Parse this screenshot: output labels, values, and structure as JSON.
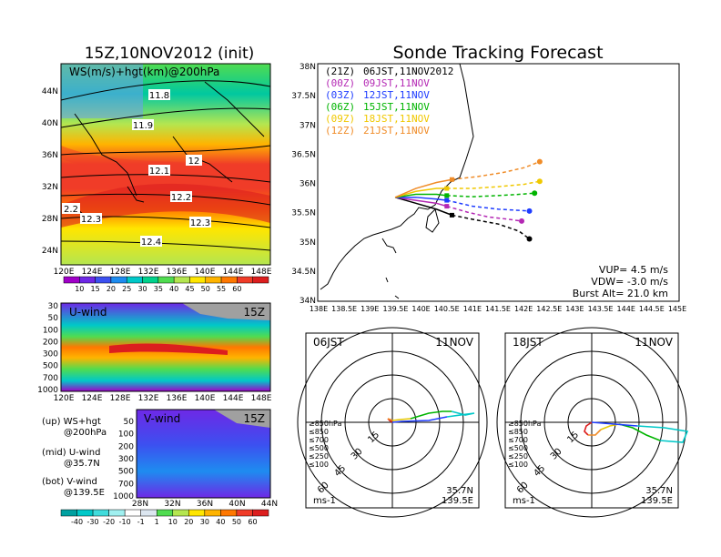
{
  "left": {
    "init_title": "15Z,10NOV2012 (init)",
    "top_panel": {
      "label": "WS(m/s)+hgt(km)@200hPa",
      "lat_ticks": [
        "44N",
        "40N",
        "36N",
        "32N",
        "28N",
        "24N"
      ],
      "lon_ticks": [
        "120E",
        "124E",
        "128E",
        "132E",
        "136E",
        "140E",
        "144E",
        "148E"
      ],
      "height_labels": [
        "11.8",
        "11.9",
        "12",
        "12.1",
        "12.2",
        "12.3",
        "12.3",
        "12.4",
        "2.2"
      ],
      "colorbar_ticks": [
        "10",
        "15",
        "20",
        "25",
        "30",
        "35",
        "40",
        "45",
        "50",
        "55",
        "60"
      ],
      "colorbar_colors": [
        "#a000c8",
        "#6e28e6",
        "#3c50f0",
        "#1e8cf0",
        "#00c8c8",
        "#00d28c",
        "#50dc50",
        "#b4e650",
        "#ffe600",
        "#ffb400",
        "#ff7800",
        "#f03c28",
        "#dc1e1e"
      ]
    },
    "mid_panel": {
      "label": "U-wind",
      "time": "15Z",
      "p_ticks": [
        "30",
        "50",
        "100",
        "200",
        "300",
        "500",
        "700",
        "1000"
      ],
      "lon_ticks": [
        "120E",
        "124E",
        "128E",
        "132E",
        "136E",
        "140E",
        "144E",
        "148E"
      ]
    },
    "bot_panel": {
      "label": "V-wind",
      "time": "15Z",
      "p_ticks": [
        "50",
        "100",
        "200",
        "300",
        "500",
        "700",
        "1000"
      ],
      "lat_ticks": [
        "28N",
        "32N",
        "36N",
        "40N",
        "44N"
      ]
    },
    "legend": {
      "up_line1": "(up) WS+hgt",
      "up_line2": "@200hPa",
      "mid_line1": "(mid) U-wind",
      "mid_line2": "@35.7N",
      "bot_line1": "(bot) V-wind",
      "bot_line2": "@139.5E"
    },
    "colorbar2_ticks": [
      "-40",
      "-30",
      "-20",
      "-10",
      "-1",
      "1",
      "10",
      "20",
      "30",
      "40",
      "50",
      "60"
    ]
  },
  "tracking": {
    "title": "Sonde Tracking Forecast",
    "lat_ticks": [
      "38N",
      "37.5N",
      "37N",
      "36.5N",
      "36N",
      "35.5N",
      "35N",
      "34.5N",
      "34N"
    ],
    "lon_ticks": [
      "138E",
      "138.5E",
      "139E",
      "139.5E",
      "140E",
      "140.5E",
      "141E",
      "141.5E",
      "142E",
      "142.5E",
      "143E",
      "143.5E",
      "144E",
      "144.5E",
      "145E"
    ],
    "launches": [
      {
        "utc": "(21Z)",
        "jst": "06JST,11NOV2012",
        "color": "#000000"
      },
      {
        "utc": "(00Z)",
        "jst": "09JST,11NOV",
        "color": "#b428b4"
      },
      {
        "utc": "(03Z)",
        "jst": "12JST,11NOV",
        "color": "#1e3cff"
      },
      {
        "utc": "(06Z)",
        "jst": "15JST,11NOV",
        "color": "#00b400"
      },
      {
        "utc": "(09Z)",
        "jst": "18JST,11NOV",
        "color": "#f0c800"
      },
      {
        "utc": "(12Z)",
        "jst": "21JST,11NOV",
        "color": "#f08c28"
      }
    ],
    "vup": "VUP= 4.5 m/s",
    "vdw": "VDW= -3.0 m/s",
    "burst": "Burst Alt= 21.0 km"
  },
  "hodographs": [
    {
      "time": "06JST",
      "date": "11NOV",
      "lat": "35.7N",
      "lon": "139.5E",
      "unit": "ms-1"
    },
    {
      "time": "18JST",
      "date": "11NOV",
      "lat": "35.7N",
      "lon": "139.5E",
      "unit": "ms-1"
    }
  ],
  "hodo_ring_labels": [
    "15",
    "30",
    "45",
    "60"
  ],
  "hodo_levels": [
    {
      "label": "≥850hPa",
      "color": "#dc1e1e"
    },
    {
      "label": "≤850",
      "color": "#f08c28"
    },
    {
      "label": "≤700",
      "color": "#e6c800"
    },
    {
      "label": "≤500",
      "color": "#00b400"
    },
    {
      "label": "≤250",
      "color": "#00c8c8"
    },
    {
      "label": "≤100",
      "color": "#1e3cff"
    }
  ],
  "chart_data": [
    {
      "type": "line",
      "title": "Sonde Tracking Forecast",
      "xlabel": "",
      "ylabel": "",
      "xlim": [
        138,
        145
      ],
      "ylim": [
        34,
        38
      ],
      "launch_point": [
        139.5,
        35.75
      ],
      "series": [
        {
          "name": "(21Z) 06JST,11NOV2012",
          "x": [
            139.5,
            139.9,
            140.3,
            140.6,
            141.0,
            141.5,
            141.9,
            142.1
          ],
          "y": [
            35.75,
            35.65,
            35.55,
            35.45,
            35.38,
            35.3,
            35.18,
            35.05
          ]
        },
        {
          "name": "(00Z) 09JST,11NOV",
          "x": [
            139.5,
            139.9,
            140.3,
            140.5,
            140.9,
            141.3,
            141.7,
            141.95
          ],
          "y": [
            35.75,
            35.7,
            35.65,
            35.6,
            35.5,
            35.42,
            35.38,
            35.35
          ]
        },
        {
          "name": "(03Z) 12JST,11NOV",
          "x": [
            139.5,
            139.9,
            140.3,
            140.5,
            141.0,
            141.5,
            141.9,
            142.1
          ],
          "y": [
            35.75,
            35.75,
            35.72,
            35.7,
            35.6,
            35.55,
            35.53,
            35.52
          ]
        },
        {
          "name": "(06Z) 15JST,11NOV",
          "x": [
            139.5,
            139.9,
            140.3,
            140.5,
            141.0,
            141.5,
            141.9,
            142.2
          ],
          "y": [
            35.75,
            35.8,
            35.8,
            35.78,
            35.76,
            35.78,
            35.8,
            35.82
          ]
        },
        {
          "name": "(09Z) 18JST,11NOV",
          "x": [
            139.5,
            139.9,
            140.3,
            140.5,
            141.0,
            141.5,
            142.0,
            142.3
          ],
          "y": [
            35.75,
            35.85,
            35.9,
            35.9,
            35.9,
            35.93,
            35.97,
            36.02
          ]
        },
        {
          "name": "(12Z) 21JST,11NOV",
          "x": [
            139.5,
            139.9,
            140.3,
            140.6,
            141.1,
            141.6,
            142.0,
            142.3
          ],
          "y": [
            35.75,
            35.9,
            36.0,
            36.05,
            36.1,
            36.17,
            36.25,
            36.35
          ]
        }
      ]
    }
  ]
}
